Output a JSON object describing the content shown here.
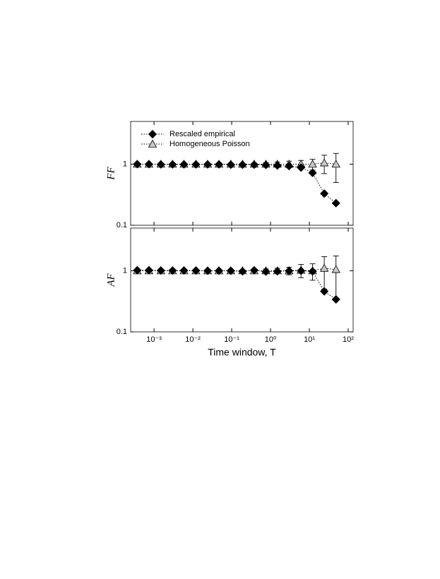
{
  "chart_data": [
    {
      "type": "line",
      "ylabel": "FF",
      "log_x": true,
      "log_y": true,
      "xlim": [
        0.00025,
        134
      ],
      "ylim": [
        0.1,
        5
      ],
      "yticks": [
        0.1,
        1
      ],
      "legend": "upper left",
      "x": [
        0.00037,
        0.00074,
        0.0015,
        0.003,
        0.0059,
        0.012,
        0.024,
        0.047,
        0.095,
        0.19,
        0.38,
        0.76,
        1.5,
        3,
        6.1,
        12.1,
        24.2,
        48.5
      ],
      "series": [
        {
          "name": "Homogeneous Poisson",
          "color": "#c8c8c8",
          "marker": "triangle",
          "values": [
            1,
            1,
            1,
            1,
            1,
            1,
            1,
            1,
            1,
            1,
            1,
            1,
            1,
            1,
            1,
            1,
            1.05,
            1
          ],
          "errors": [
            0,
            0,
            0,
            0,
            0,
            0,
            0,
            0,
            0,
            0.03,
            0.04,
            0.06,
            0.08,
            0.12,
            0.15,
            0.2,
            0.35,
            0.5
          ]
        },
        {
          "name": "Rescaled empirical",
          "color": "#000000",
          "marker": "diamond",
          "values": [
            1,
            1,
            0.99,
            0.99,
            0.99,
            0.99,
            0.99,
            0.99,
            0.98,
            0.98,
            0.98,
            0.97,
            0.95,
            0.93,
            0.88,
            0.72,
            0.33,
            0.23
          ]
        }
      ]
    },
    {
      "type": "line",
      "ylabel": "AF",
      "xlabel": "Time window, T",
      "log_x": true,
      "log_y": true,
      "xlim": [
        0.00025,
        134
      ],
      "ylim": [
        0.1,
        5
      ],
      "yticks": [
        0.1,
        1
      ],
      "xticks": [
        {
          "value": 0.001,
          "label": "10⁻³"
        },
        {
          "value": 0.01,
          "label": "10⁻²"
        },
        {
          "value": 0.1,
          "label": "10⁻¹"
        },
        {
          "value": 1,
          "label": "10⁰"
        },
        {
          "value": 10,
          "label": "10¹"
        },
        {
          "value": 100,
          "label": "10²"
        }
      ],
      "x": [
        0.00037,
        0.00074,
        0.0015,
        0.003,
        0.0059,
        0.012,
        0.024,
        0.047,
        0.095,
        0.19,
        0.38,
        0.76,
        1.5,
        3,
        6.1,
        12.1,
        24.2,
        48.5
      ],
      "series": [
        {
          "name": "Homogeneous Poisson",
          "color": "#c8c8c8",
          "marker": "triangle",
          "values": [
            1,
            1,
            1,
            1,
            1,
            1,
            1,
            1,
            1,
            1,
            1,
            1,
            1,
            1,
            1.02,
            1,
            1.1,
            1.05
          ],
          "errors": [
            0,
            0,
            0,
            0,
            0,
            0,
            0,
            0,
            0,
            0.03,
            0.05,
            0.07,
            0.1,
            0.14,
            0.25,
            0.3,
            0.6,
            0.7
          ]
        },
        {
          "name": "Rescaled empirical",
          "color": "#000000",
          "marker": "diamond",
          "values": [
            1.02,
            1.02,
            1.01,
            1.01,
            1.01,
            1.01,
            1,
            1,
            1,
            0.98,
            1.02,
            0.97,
            0.98,
            1,
            1,
            0.98,
            0.46,
            0.34
          ]
        }
      ]
    }
  ]
}
